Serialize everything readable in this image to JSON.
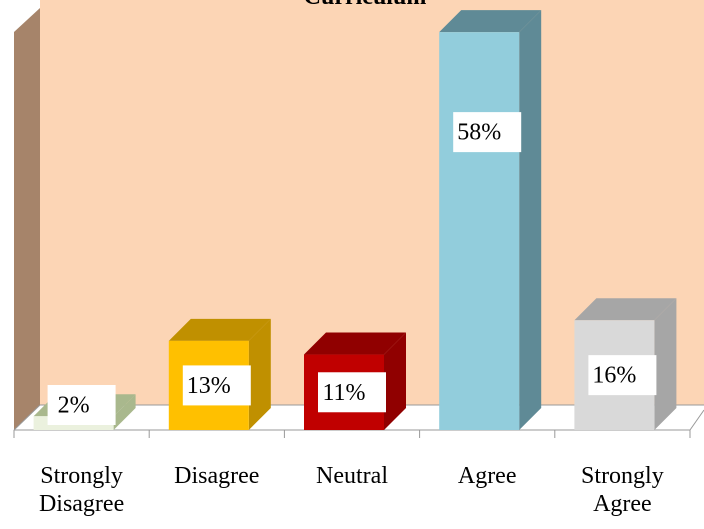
{
  "chart_data": {
    "type": "bar3d",
    "title": "Curriculum",
    "categories": [
      "Strongly Disagree",
      "Disagree",
      "Neutral",
      "Agree",
      "Strongly Agree"
    ],
    "values": [
      2,
      13,
      11,
      58,
      16
    ],
    "value_labels": [
      "2%",
      "13%",
      "11%",
      "58%",
      "16%"
    ],
    "colors": [
      "#ebf1de",
      "#ffc000",
      "#c00000",
      "#92cddc",
      "#d9d9d9"
    ],
    "side_colors": [
      "#a9b88d",
      "#c09000",
      "#900000",
      "#5f8a96",
      "#a6a6a6"
    ]
  }
}
